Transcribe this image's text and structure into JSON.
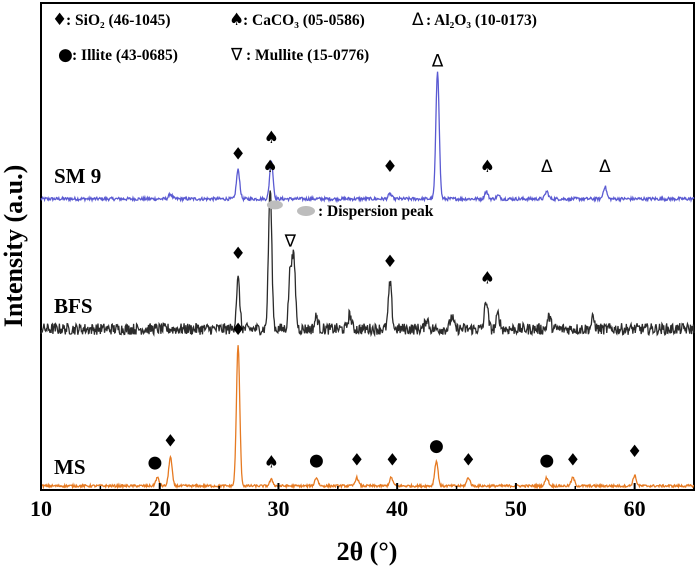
{
  "chart_data": {
    "type": "line",
    "xlabel": "2θ (°)",
    "ylabel": "Intensity (a.u.)",
    "xlim": [
      10,
      65
    ],
    "x_ticks": [
      10,
      20,
      30,
      40,
      50,
      60
    ],
    "legend": {
      "line1": [
        {
          "symbol": "♦",
          "text": ": SiO₂ (46-1045)"
        },
        {
          "symbol": "♠",
          "text": ": CaCO₃ (05-0586)"
        },
        {
          "symbol": "Δ",
          "text": ": Al₂O₃ (10-0173)"
        }
      ],
      "line2": [
        {
          "symbol": "●",
          "text": ": Illite (43-0685)"
        },
        {
          "symbol": "∇",
          "text": ": Mullite (15-0776)"
        }
      ]
    },
    "dispersion_label": ": Dispersion peak",
    "series": [
      {
        "name": "SM 9",
        "color": "#5a5ad2",
        "baseline": 0.7,
        "noise": 0.004,
        "peaks": [
          [
            20.9,
            0.012
          ],
          [
            26.6,
            0.07
          ],
          [
            29.4,
            0.095
          ],
          [
            39.4,
            0.012
          ],
          [
            43.4,
            0.31
          ],
          [
            47.5,
            0.018
          ],
          [
            48.5,
            0.008
          ],
          [
            52.6,
            0.018
          ],
          [
            57.5,
            0.03
          ]
        ],
        "markers": [
          {
            "x": 26.6,
            "symbol": "♦",
            "y": 0.795
          },
          {
            "x": 29.4,
            "symbol": "♠",
            "y": 0.835
          },
          {
            "x": 39.4,
            "symbol": "♦",
            "y": 0.765
          },
          {
            "x": 43.4,
            "symbol": "Δ",
            "y": 1.02
          },
          {
            "x": 47.6,
            "symbol": "♠",
            "y": 0.765
          },
          {
            "x": 52.6,
            "symbol": "Δ",
            "y": 0.765
          },
          {
            "x": 57.5,
            "symbol": "Δ",
            "y": 0.765
          }
        ],
        "dispersion_x": 29.7
      },
      {
        "name": "BFS",
        "color": "#2b2b2b",
        "baseline": 0.385,
        "noise": 0.014,
        "peaks": [
          [
            26.6,
            0.12
          ],
          [
            29.3,
            0.34
          ],
          [
            31.0,
            0.14
          ],
          [
            31.3,
            0.16
          ],
          [
            33.2,
            0.03
          ],
          [
            36.0,
            0.035
          ],
          [
            39.4,
            0.11
          ],
          [
            42.5,
            0.025
          ],
          [
            44.6,
            0.03
          ],
          [
            47.5,
            0.07
          ],
          [
            48.5,
            0.035
          ],
          [
            52.8,
            0.03
          ],
          [
            56.5,
            0.025
          ]
        ],
        "markers": [
          {
            "x": 26.6,
            "symbol": "♦",
            "y": 0.555
          },
          {
            "x": 29.3,
            "symbol": "♠",
            "y": 0.765
          },
          {
            "x": 31.0,
            "symbol": "∇",
            "y": 0.585
          },
          {
            "x": 39.4,
            "symbol": "♦",
            "y": 0.535
          },
          {
            "x": 47.6,
            "symbol": "♠",
            "y": 0.495
          }
        ]
      },
      {
        "name": "MS",
        "color": "#e67a22",
        "baseline": 0.005,
        "noise": 0.003,
        "peaks": [
          [
            19.8,
            0.02
          ],
          [
            20.9,
            0.07
          ],
          [
            26.6,
            0.34
          ],
          [
            29.4,
            0.015
          ],
          [
            33.2,
            0.02
          ],
          [
            36.6,
            0.02
          ],
          [
            39.5,
            0.02
          ],
          [
            43.3,
            0.06
          ],
          [
            46.0,
            0.02
          ],
          [
            52.6,
            0.02
          ],
          [
            54.8,
            0.02
          ],
          [
            60.0,
            0.025
          ]
        ],
        "markers": [
          {
            "x": 19.6,
            "symbol": "●",
            "y": 0.05
          },
          {
            "x": 20.9,
            "symbol": "♦",
            "y": 0.1
          },
          {
            "x": 26.6,
            "symbol": "♦",
            "y": 0.37
          },
          {
            "x": 29.4,
            "symbol": "♠",
            "y": 0.05
          },
          {
            "x": 33.2,
            "symbol": "●",
            "y": 0.055
          },
          {
            "x": 36.6,
            "symbol": "♦",
            "y": 0.055
          },
          {
            "x": 39.6,
            "symbol": "♦",
            "y": 0.055
          },
          {
            "x": 43.3,
            "symbol": "●",
            "y": 0.09
          },
          {
            "x": 46.0,
            "symbol": "♦",
            "y": 0.055
          },
          {
            "x": 52.6,
            "symbol": "●",
            "y": 0.055
          },
          {
            "x": 54.8,
            "symbol": "♦",
            "y": 0.055
          },
          {
            "x": 60.0,
            "symbol": "♦",
            "y": 0.075
          }
        ]
      }
    ]
  }
}
